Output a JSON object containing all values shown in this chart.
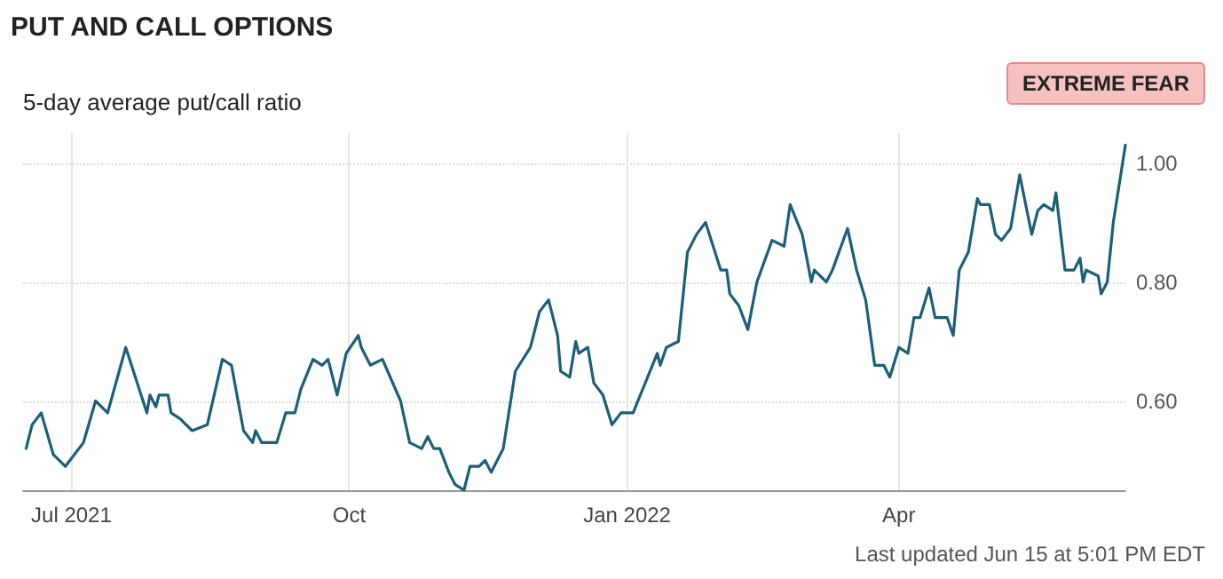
{
  "chart_data": {
    "type": "line",
    "title": "PUT AND CALL OPTIONS",
    "subtitle": "5-day average put/call ratio",
    "annotations": [
      "EXTREME FEAR",
      "Last updated Jun 15 at 5:01 PM EDT"
    ],
    "x": [
      "2021-06-16",
      "2021-06-18",
      "2021-06-21",
      "2021-06-25",
      "2021-06-29",
      "2021-07-05",
      "2021-07-09",
      "2021-07-13",
      "2021-07-19",
      "2021-07-26",
      "2021-07-27",
      "2021-07-29",
      "2021-07-30",
      "2021-08-02",
      "2021-08-03",
      "2021-08-06",
      "2021-08-10",
      "2021-08-15",
      "2021-08-20",
      "2021-08-23",
      "2021-08-27",
      "2021-08-30",
      "2021-08-31",
      "2021-09-02",
      "2021-09-07",
      "2021-09-10",
      "2021-09-13",
      "2021-09-15",
      "2021-09-19",
      "2021-09-22",
      "2021-09-24",
      "2021-09-27",
      "2021-09-30",
      "2021-10-04",
      "2021-10-05",
      "2021-10-08",
      "2021-10-12",
      "2021-10-18",
      "2021-10-21",
      "2021-10-25",
      "2021-10-27",
      "2021-10-29",
      "2021-10-31",
      "2021-11-03",
      "2021-11-05",
      "2021-11-08",
      "2021-11-10",
      "2021-11-13",
      "2021-11-15",
      "2021-11-17",
      "2021-11-21",
      "2021-11-25",
      "2021-11-30",
      "2021-12-03",
      "2021-12-06",
      "2021-12-09",
      "2021-12-10",
      "2021-12-13",
      "2021-12-15",
      "2021-12-16",
      "2021-12-19",
      "2021-12-21",
      "2021-12-24",
      "2021-12-27",
      "2021-12-30",
      "2022-01-03",
      "2022-01-11",
      "2022-01-12",
      "2022-01-14",
      "2022-01-18",
      "2022-01-21",
      "2022-01-24",
      "2022-01-27",
      "2022-02-01",
      "2022-02-03",
      "2022-02-04",
      "2022-02-07",
      "2022-02-10",
      "2022-02-13",
      "2022-02-18",
      "2022-02-22",
      "2022-02-24",
      "2022-02-28",
      "2022-03-03",
      "2022-03-04",
      "2022-03-08",
      "2022-03-10",
      "2022-03-15",
      "2022-03-18",
      "2022-03-21",
      "2022-03-24",
      "2022-03-27",
      "2022-03-29",
      "2022-04-01",
      "2022-04-04",
      "2022-04-06",
      "2022-04-08",
      "2022-04-11",
      "2022-04-13",
      "2022-04-17",
      "2022-04-19",
      "2022-04-21",
      "2022-04-24",
      "2022-04-27",
      "2022-04-28",
      "2022-05-01",
      "2022-05-03",
      "2022-05-05",
      "2022-05-08",
      "2022-05-11",
      "2022-05-15",
      "2022-05-17",
      "2022-05-19",
      "2022-05-22",
      "2022-05-23",
      "2022-05-26",
      "2022-05-29",
      "2022-05-31",
      "2022-06-01",
      "2022-06-02",
      "2022-06-06",
      "2022-06-07",
      "2022-06-09",
      "2022-06-11",
      "2022-06-15"
    ],
    "series": [
      {
        "color": "#1d5e78",
        "values": [
          0.52,
          0.56,
          0.58,
          0.51,
          0.49,
          0.53,
          0.6,
          0.58,
          0.69,
          0.58,
          0.61,
          0.59,
          0.61,
          0.61,
          0.58,
          0.57,
          0.55,
          0.56,
          0.67,
          0.66,
          0.55,
          0.53,
          0.55,
          0.53,
          0.53,
          0.58,
          0.58,
          0.62,
          0.67,
          0.66,
          0.67,
          0.61,
          0.68,
          0.71,
          0.69,
          0.66,
          0.67,
          0.6,
          0.53,
          0.52,
          0.54,
          0.52,
          0.52,
          0.48,
          0.46,
          0.45,
          0.49,
          0.49,
          0.5,
          0.48,
          0.52,
          0.65,
          0.69,
          0.75,
          0.77,
          0.71,
          0.65,
          0.64,
          0.7,
          0.68,
          0.69,
          0.63,
          0.61,
          0.56,
          0.58,
          0.58,
          0.68,
          0.66,
          0.69,
          0.7,
          0.85,
          0.88,
          0.9,
          0.82,
          0.82,
          0.78,
          0.76,
          0.72,
          0.8,
          0.87,
          0.86,
          0.93,
          0.88,
          0.8,
          0.82,
          0.8,
          0.82,
          0.89,
          0.82,
          0.77,
          0.66,
          0.66,
          0.64,
          0.69,
          0.68,
          0.74,
          0.74,
          0.79,
          0.74,
          0.74,
          0.71,
          0.82,
          0.85,
          0.94,
          0.93,
          0.93,
          0.88,
          0.87,
          0.89,
          0.98,
          0.88,
          0.92,
          0.93,
          0.92,
          0.95,
          0.82,
          0.82,
          0.84,
          0.8,
          0.82,
          0.81,
          0.78,
          0.8,
          0.9,
          1.03
        ]
      }
    ],
    "xlim": [
      "2021-06-15",
      "2022-06-15"
    ],
    "xticks": [
      {
        "value": "2021-07-01",
        "label": "Jul 2021"
      },
      {
        "value": "2021-10-01",
        "label": "Oct"
      },
      {
        "value": "2022-01-01",
        "label": "Jan 2022"
      },
      {
        "value": "2022-04-01",
        "label": "Apr"
      }
    ],
    "ylim": [
      0.45,
      1.05
    ],
    "yticks": [
      {
        "value": 0.6,
        "label": "0.60"
      },
      {
        "value": 0.8,
        "label": "0.80"
      },
      {
        "value": 1.0,
        "label": "1.00"
      }
    ],
    "grid": true,
    "marker": "none",
    "line_style": "solid"
  }
}
